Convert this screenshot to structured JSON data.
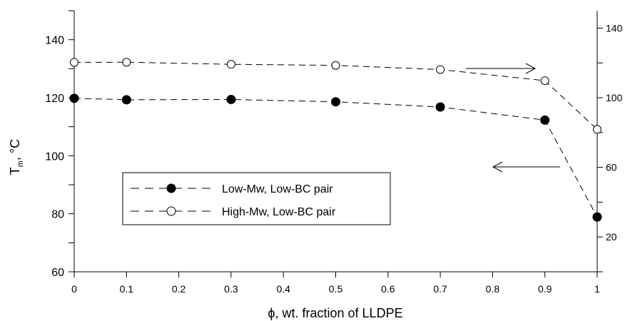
{
  "chart_data": {
    "type": "line",
    "x": [
      0,
      0.1,
      0.3,
      0.5,
      0.7,
      0.9,
      1
    ],
    "x_tick_labels": [
      "0",
      "0.1",
      "0.2",
      "0.3",
      "0.4",
      "0.5",
      "0.6",
      "0.7",
      "0.8",
      "0.9",
      "1"
    ],
    "xlim": [
      0,
      1
    ],
    "ylim": [
      60,
      150
    ],
    "y_tick_labels": [
      "60",
      "80",
      "100",
      "120",
      "140"
    ],
    "y2lim": [
      0,
      150
    ],
    "y2_tick_labels": [
      "20",
      "60",
      "100",
      "140"
    ],
    "ylabel": {
      "main": "T",
      "sub": "m",
      "unit": ", °C"
    },
    "xlabel": {
      "symbol": "ϕ",
      "rest": ", wt. fraction of LLDPE"
    },
    "series": [
      {
        "name": "Low-Mw, Low-BC pair",
        "marker": "filled-circle",
        "axis": "left",
        "values": [
          119.8,
          119.3,
          119.4,
          118.6,
          116.8,
          112.3,
          78.9
        ]
      },
      {
        "name": "High-Mw, Low-BC pair",
        "marker": "open-circle",
        "axis": "right",
        "values": [
          120.3,
          120.4,
          119.2,
          118.6,
          116.2,
          109.8,
          81.8
        ]
      }
    ],
    "legend_position": "lower-left",
    "grid": false,
    "colors": {
      "axis": "#000000",
      "line": "#000000",
      "background": "#ffffff"
    }
  }
}
